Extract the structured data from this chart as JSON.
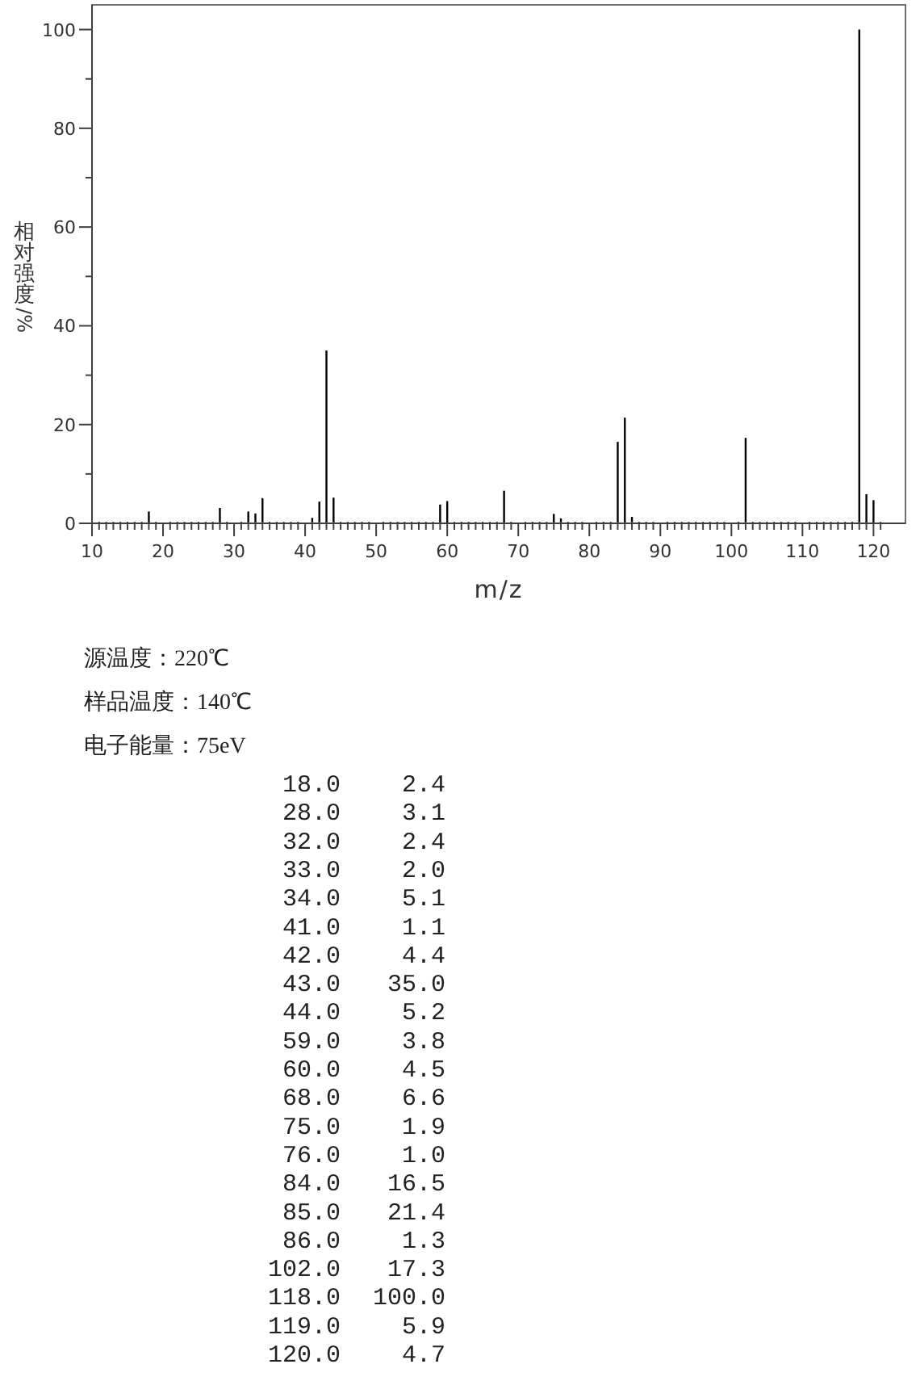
{
  "chart_data": [
    {
      "type": "bar",
      "xlabel": "m/z",
      "ylabel": "相对强度/%",
      "x": [
        18,
        28,
        32,
        33,
        34,
        41,
        42,
        43,
        44,
        59,
        60,
        68,
        75,
        76,
        84,
        85,
        86,
        102,
        118,
        119,
        120
      ],
      "values": [
        2.4,
        3.1,
        2.4,
        2.0,
        5.1,
        1.1,
        4.4,
        35.0,
        5.2,
        3.8,
        4.5,
        6.6,
        1.9,
        1.0,
        16.5,
        21.4,
        1.3,
        17.3,
        100.0,
        5.9,
        4.7
      ],
      "color": "#000000",
      "xlim": [
        10,
        124.5
      ],
      "ylim": [
        0,
        105
      ],
      "xticks": [
        10,
        {
          "value": 11,
          "label": null
        },
        {
          "value": 12,
          "label": null
        },
        {
          "value": 13,
          "label": null
        },
        {
          "value": 14,
          "label": null
        },
        {
          "value": 15,
          "label": null
        },
        {
          "value": 16,
          "label": null
        },
        {
          "value": 17,
          "label": null
        },
        {
          "value": 18,
          "label": null
        },
        {
          "value": 19,
          "label": null
        },
        20,
        {
          "value": 21,
          "label": null
        },
        {
          "value": 22,
          "label": null
        },
        {
          "value": 23,
          "label": null
        },
        {
          "value": 24,
          "label": null
        },
        {
          "value": 25,
          "label": null
        },
        {
          "value": 26,
          "label": null
        },
        {
          "value": 27,
          "label": null
        },
        {
          "value": 28,
          "label": null
        },
        {
          "value": 29,
          "label": null
        },
        30,
        {
          "value": 31,
          "label": null
        },
        {
          "value": 32,
          "label": null
        },
        {
          "value": 33,
          "label": null
        },
        {
          "value": 34,
          "label": null
        },
        {
          "value": 35,
          "label": null
        },
        {
          "value": 36,
          "label": null
        },
        {
          "value": 37,
          "label": null
        },
        {
          "value": 38,
          "label": null
        },
        {
          "value": 39,
          "label": null
        },
        40,
        {
          "value": 41,
          "label": null
        },
        {
          "value": 42,
          "label": null
        },
        {
          "value": 43,
          "label": null
        },
        {
          "value": 44,
          "label": null
        },
        {
          "value": 45,
          "label": null
        },
        {
          "value": 46,
          "label": null
        },
        {
          "value": 47,
          "label": null
        },
        {
          "value": 48,
          "label": null
        },
        {
          "value": 49,
          "label": null
        },
        50,
        {
          "value": 51,
          "label": null
        },
        {
          "value": 52,
          "label": null
        },
        {
          "value": 53,
          "label": null
        },
        {
          "value": 54,
          "label": null
        },
        {
          "value": 55,
          "label": null
        },
        {
          "value": 56,
          "label": null
        },
        {
          "value": 57,
          "label": null
        },
        {
          "value": 58,
          "label": null
        },
        {
          "value": 59,
          "label": null
        },
        60,
        {
          "value": 61,
          "label": null
        },
        {
          "value": 62,
          "label": null
        },
        {
          "value": 63,
          "label": null
        },
        {
          "value": 64,
          "label": null
        },
        {
          "value": 65,
          "label": null
        },
        {
          "value": 66,
          "label": null
        },
        {
          "value": 67,
          "label": null
        },
        {
          "value": 68,
          "label": null
        },
        {
          "value": 69,
          "label": null
        },
        70,
        {
          "value": 71,
          "label": null
        },
        {
          "value": 72,
          "label": null
        },
        {
          "value": 73,
          "label": null
        },
        {
          "value": 74,
          "label": null
        },
        {
          "value": 75,
          "label": null
        },
        {
          "value": 76,
          "label": null
        },
        {
          "value": 77,
          "label": null
        },
        {
          "value": 78,
          "label": null
        },
        {
          "value": 79,
          "label": null
        },
        80,
        {
          "value": 81,
          "label": null
        },
        {
          "value": 82,
          "label": null
        },
        {
          "value": 83,
          "label": null
        },
        {
          "value": 84,
          "label": null
        },
        {
          "value": 85,
          "label": null
        },
        {
          "value": 86,
          "label": null
        },
        {
          "value": 87,
          "label": null
        },
        {
          "value": 88,
          "label": null
        },
        {
          "value": 89,
          "label": null
        },
        90,
        {
          "value": 91,
          "label": null
        },
        {
          "value": 92,
          "label": null
        },
        {
          "value": 93,
          "label": null
        },
        {
          "value": 94,
          "label": null
        },
        {
          "value": 95,
          "label": null
        },
        {
          "value": 96,
          "label": null
        },
        {
          "value": 97,
          "label": null
        },
        {
          "value": 98,
          "label": null
        },
        {
          "value": 99,
          "label": null
        },
        100,
        {
          "value": 101,
          "label": null
        },
        {
          "value": 102,
          "label": null
        },
        {
          "value": 103,
          "label": null
        },
        {
          "value": 104,
          "label": null
        },
        {
          "value": 105,
          "label": null
        },
        {
          "value": 106,
          "label": null
        },
        {
          "value": 107,
          "label": null
        },
        {
          "value": 108,
          "label": null
        },
        {
          "value": 109,
          "label": null
        },
        110,
        {
          "value": 111,
          "label": null
        },
        {
          "value": 112,
          "label": null
        },
        {
          "value": 113,
          "label": null
        },
        {
          "value": 114,
          "label": null
        },
        {
          "value": 115,
          "label": null
        },
        {
          "value": 116,
          "label": null
        },
        {
          "value": 117,
          "label": null
        },
        {
          "value": 118,
          "label": null
        },
        {
          "value": 119,
          "label": null
        },
        120,
        {
          "value": 121,
          "label": null
        }
      ],
      "yticks": [
        0,
        {
          "value": 10,
          "label": null
        },
        20,
        {
          "value": 30,
          "label": null
        },
        40,
        {
          "value": 50,
          "label": null
        },
        60,
        {
          "value": 70,
          "label": null
        },
        80,
        {
          "value": 90,
          "label": null
        },
        100
      ],
      "annotations": [
        "源温度：220℃",
        "样品温度：140℃",
        "电子能量：75eV"
      ]
    },
    {
      "type": "other",
      "annotations": [
        "18.0",
        "2.4",
        "28.0",
        "3.1",
        "32.0",
        "2.4",
        "33.0",
        "2.0",
        "34.0",
        "5.1",
        "41.0",
        "1.1",
        "42.0",
        "4.4",
        "43.0",
        "35.0",
        "44.0",
        "5.2",
        "59.0",
        "3.8",
        "60.0",
        "4.5",
        "68.0",
        "6.6",
        "75.0",
        "1.9",
        "76.0",
        "1.0",
        "84.0",
        "16.5",
        "85.0",
        "21.4",
        "86.0",
        "1.3",
        "102.0",
        "17.3",
        "118.0",
        "100.0",
        "119.0",
        "5.9",
        "120.0",
        "4.7"
      ]
    }
  ]
}
